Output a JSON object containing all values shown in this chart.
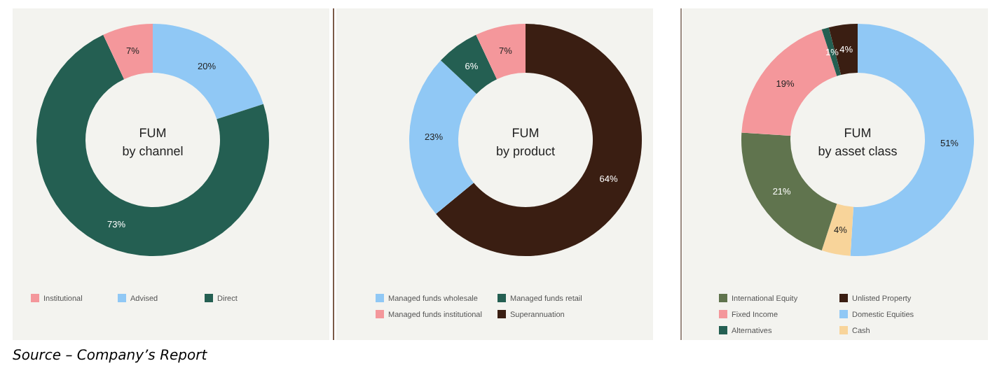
{
  "chart_data": [
    {
      "type": "donut",
      "title": "FUM",
      "subtitle": "by channel",
      "categories": [
        "Advised",
        "Direct",
        "Institutional"
      ],
      "values": [
        20,
        73,
        7
      ],
      "colors": [
        "#90c8f5",
        "#245f52",
        "#f4979b"
      ],
      "value_labels": [
        "20%",
        "73%",
        "7%"
      ],
      "legend": "bottom",
      "annotations": [
        "Source – Company’s Report"
      ]
    },
    {
      "type": "donut",
      "title": "FUM",
      "subtitle": "by product",
      "categories": [
        "Superannuation",
        "Managed funds wholesale",
        "Managed funds retail",
        "Managed funds institutional"
      ],
      "values": [
        64,
        23,
        6,
        7
      ],
      "colors": [
        "#3a1e12",
        "#90c8f5",
        "#245f52",
        "#f4979b"
      ],
      "value_labels": [
        "64%",
        "23%",
        "6%",
        "7%"
      ],
      "legend": "bottom"
    },
    {
      "type": "donut",
      "title": "FUM",
      "subtitle": "by asset class",
      "categories": [
        "Domestic Equities",
        "Cash",
        "International Equity",
        "Fixed Income",
        "Alternatives",
        "Unlisted Property"
      ],
      "values": [
        51,
        4,
        21,
        19,
        1,
        4
      ],
      "colors": [
        "#90c8f5",
        "#f8d49a",
        "#60744e",
        "#f4979b",
        "#245f52",
        "#3a1e12"
      ],
      "value_labels": [
        "51%",
        "4%",
        "21%",
        "19%",
        "1%",
        "4%"
      ],
      "legend": "bottom"
    }
  ]
}
